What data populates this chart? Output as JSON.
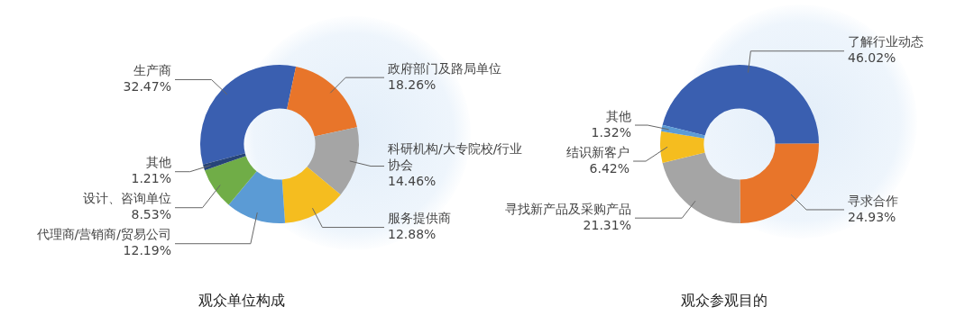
{
  "chart_data": [
    {
      "type": "donut",
      "title": "观众单位构成",
      "legend": false,
      "categories": [
        "生产商",
        "政府部门及路局单位",
        "科研机构/大专院校/行业协会",
        "服务提供商",
        "代理商/营销商/贸易公司",
        "设计、咨询单位",
        "其他"
      ],
      "values": [
        32.47,
        18.26,
        14.46,
        12.88,
        12.19,
        8.53,
        1.21
      ],
      "value_labels": [
        "32.47%",
        "18.26%",
        "14.46%",
        "12.88%",
        "12.19%",
        "8.53%",
        "1.21%"
      ],
      "colors": [
        "#3a5fb0",
        "#e8752a",
        "#a5a5a5",
        "#f5bd1f",
        "#5b9bd5",
        "#70ad47",
        "#264478"
      ]
    },
    {
      "type": "donut",
      "title": "观众参观目的",
      "legend": false,
      "categories": [
        "了解行业动态",
        "寻求合作",
        "寻找新产品及采购产品",
        "结识新客户",
        "其他"
      ],
      "values": [
        46.02,
        24.93,
        21.31,
        6.42,
        1.32
      ],
      "value_labels": [
        "46.02%",
        "24.93%",
        "21.31%",
        "6.42%",
        "1.32%"
      ],
      "colors": [
        "#3a5fb0",
        "#e8752a",
        "#a5a5a5",
        "#f5bd1f",
        "#5b9bd5"
      ]
    }
  ]
}
